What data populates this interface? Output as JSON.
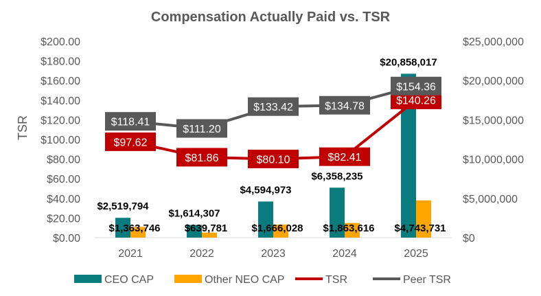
{
  "chart_data": {
    "type": "bar",
    "title": "Compensation Actually Paid vs. TSR",
    "ylabel": "TSR",
    "y2label": "",
    "categories": [
      "2021",
      "2022",
      "2023",
      "2024",
      "2025"
    ],
    "ylim": [
      0,
      200
    ],
    "y2lim": [
      0,
      25000000
    ],
    "y_ticks": [
      "$0.00",
      "$20.00",
      "$40.00",
      "$60.00",
      "$80.00",
      "$100.00",
      "$120.00",
      "$140.00",
      "$160.00",
      "$180.00",
      "$200.00"
    ],
    "y2_ticks": [
      "$0",
      "$5,000,000",
      "$10,000,000",
      "$15,000,000",
      "$20,000,000",
      "$25,000,000"
    ],
    "legend_position": "bottom",
    "grid": false,
    "series": [
      {
        "name": "CEO CAP",
        "kind": "bar",
        "axis": "right",
        "color": "#0b7c7e",
        "values": [
          2519794,
          1614307,
          4594973,
          6358235,
          20858017
        ],
        "labels": [
          "$2,519,794",
          "$1,614,307",
          "$4,594,973",
          "$6,358,235",
          "$20,858,017"
        ]
      },
      {
        "name": "Other NEO CAP",
        "kind": "bar",
        "axis": "right",
        "color": "#ffa500",
        "values": [
          1363746,
          639781,
          1666028,
          1863616,
          4743731
        ],
        "labels": [
          "$1,363,746",
          "$639,781",
          "$1,666,028",
          "$1,863,616",
          "$4,743,731"
        ]
      },
      {
        "name": "TSR",
        "kind": "line",
        "axis": "left",
        "color": "#c00000",
        "values": [
          97.62,
          81.86,
          80.1,
          82.41,
          140.26
        ],
        "labels": [
          "$97.62",
          "$81.86",
          "$80.10",
          "$82.41",
          "$140.26"
        ]
      },
      {
        "name": "Peer TSR",
        "kind": "line",
        "axis": "left",
        "color": "#595959",
        "values": [
          118.41,
          111.2,
          133.42,
          134.78,
          154.36
        ],
        "labels": [
          "$118.41",
          "$111.20",
          "$133.42",
          "$134.78",
          "$154.36"
        ]
      }
    ]
  }
}
